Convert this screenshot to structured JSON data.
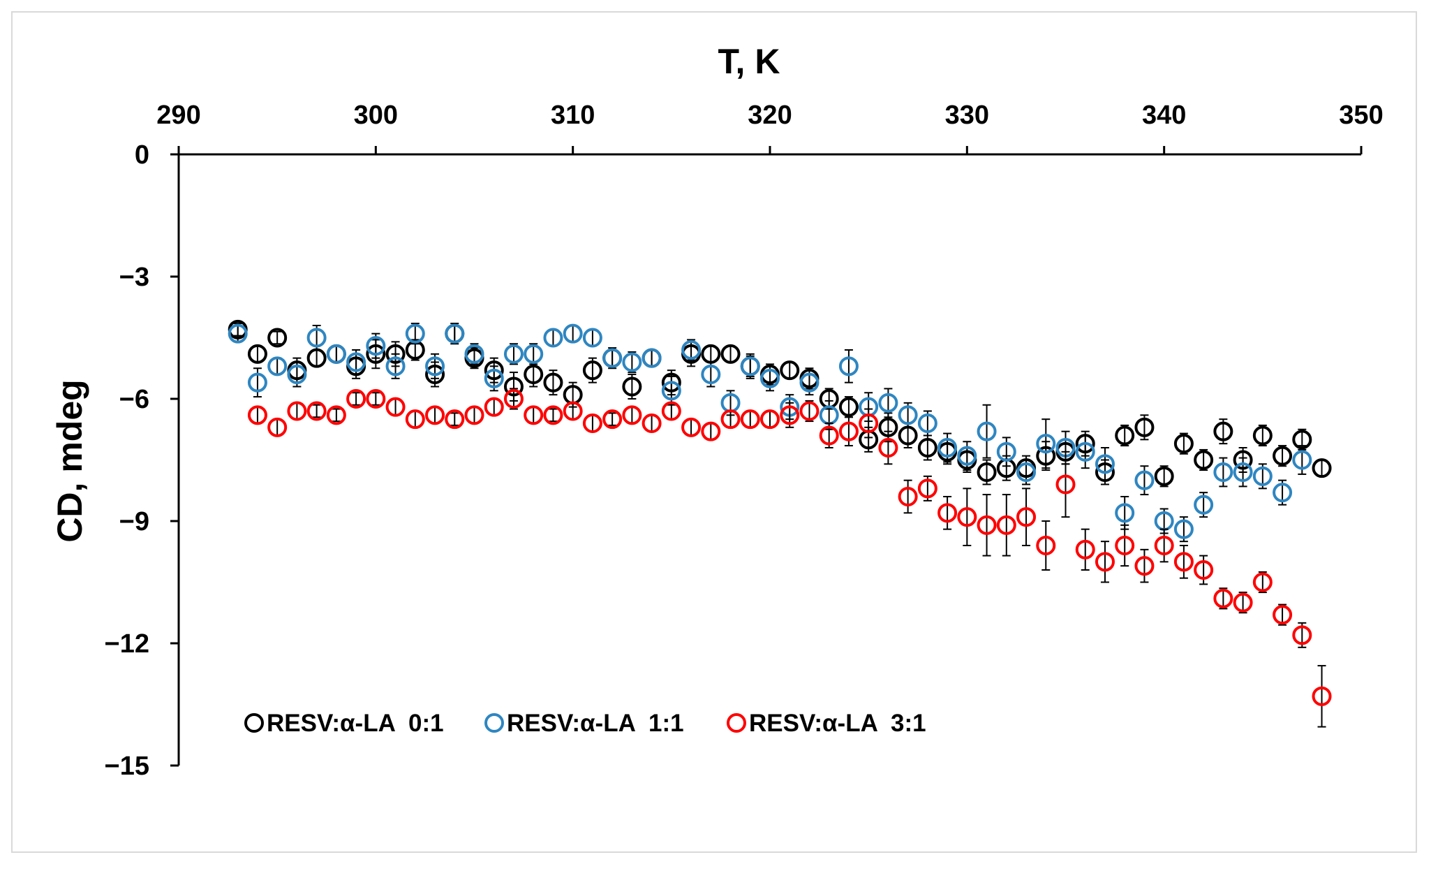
{
  "chart_data": {
    "type": "scatter",
    "title": "",
    "xlabel": "T, K",
    "ylabel": "CD, mdeg",
    "xlim": [
      290,
      350
    ],
    "ylim": [
      -15,
      0
    ],
    "x_ticks": [
      290,
      300,
      310,
      320,
      330,
      340,
      350
    ],
    "y_ticks": [
      0,
      -3,
      -6,
      -9,
      -12,
      -15
    ],
    "y_tick_labels": [
      "0",
      "−3",
      "−6",
      "−9",
      "−12",
      "−15"
    ],
    "x_axis_position": "top",
    "grid": false,
    "legend_position": "bottom-left",
    "error_bars": true,
    "series": [
      {
        "name": "RESV:α-LA  0:1",
        "color": "#000000",
        "x": [
          293,
          294,
          295,
          296,
          297,
          298,
          299,
          300,
          301,
          302,
          303,
          304,
          305,
          306,
          307,
          308,
          309,
          310,
          311,
          312,
          313,
          314,
          315,
          316,
          317,
          318,
          319,
          320,
          321,
          322,
          323,
          324,
          325,
          326,
          327,
          328,
          329,
          330,
          331,
          332,
          333,
          334,
          335,
          336,
          337,
          338,
          339,
          340,
          341,
          342,
          343,
          344,
          345,
          346,
          347,
          348
        ],
        "y": [
          -4.3,
          -4.9,
          -4.5,
          -5.3,
          -5.0,
          -4.9,
          -5.2,
          -4.9,
          -4.9,
          -4.8,
          -5.4,
          -4.4,
          -5.0,
          -5.3,
          -5.7,
          -5.4,
          -5.6,
          -5.9,
          -5.3,
          -5.0,
          -5.7,
          -5.0,
          -5.6,
          -4.9,
          -4.9,
          -4.9,
          -5.2,
          -5.4,
          -5.3,
          -5.5,
          -6.0,
          -6.2,
          -7.0,
          -6.7,
          -6.9,
          -7.2,
          -7.3,
          -7.5,
          -7.8,
          -7.7,
          -7.7,
          -7.4,
          -7.3,
          -7.1,
          -7.8,
          -6.9,
          -6.7,
          -7.9,
          -7.1,
          -7.5,
          -6.8,
          -7.5,
          -6.9,
          -7.4,
          -7.0,
          -7.7
        ],
        "err": [
          0.15,
          0.2,
          0.15,
          0.3,
          0.2,
          0.2,
          0.3,
          0.35,
          0.3,
          0.25,
          0.3,
          0.2,
          0.25,
          0.3,
          0.35,
          0.3,
          0.3,
          0.3,
          0.3,
          0.25,
          0.3,
          0.2,
          0.3,
          0.3,
          0.2,
          0.2,
          0.25,
          0.25,
          0.2,
          0.25,
          0.25,
          0.25,
          0.3,
          0.35,
          0.3,
          0.3,
          0.3,
          0.3,
          0.3,
          0.3,
          0.3,
          0.35,
          0.3,
          0.3,
          0.3,
          0.25,
          0.3,
          0.25,
          0.25,
          0.25,
          0.3,
          0.3,
          0.25,
          0.25,
          0.25,
          0.2
        ]
      },
      {
        "name": "RESV:α-LA  1:1",
        "color": "#2e86c1",
        "x": [
          293,
          294,
          295,
          296,
          297,
          298,
          299,
          300,
          301,
          302,
          303,
          304,
          305,
          306,
          307,
          308,
          309,
          310,
          311,
          312,
          313,
          314,
          315,
          316,
          317,
          318,
          319,
          320,
          321,
          322,
          323,
          324,
          325,
          326,
          327,
          328,
          329,
          330,
          331,
          332,
          333,
          334,
          335,
          336,
          337,
          338,
          339,
          340,
          341,
          342,
          343,
          344,
          345,
          346,
          347
        ],
        "y": [
          -4.4,
          -5.6,
          -5.2,
          -5.4,
          -4.5,
          -4.9,
          -5.1,
          -4.7,
          -5.2,
          -4.4,
          -5.2,
          -4.4,
          -4.9,
          -5.5,
          -4.9,
          -4.9,
          -4.5,
          -4.4,
          -4.5,
          -5.0,
          -5.1,
          -5.0,
          -5.8,
          -4.8,
          -5.4,
          -6.1,
          -5.2,
          -5.5,
          -6.2,
          -5.6,
          -6.4,
          -5.2,
          -6.2,
          -6.1,
          -6.4,
          -6.6,
          -7.2,
          -7.4,
          -6.8,
          -7.3,
          -7.8,
          -7.1,
          -7.2,
          -7.3,
          -7.6,
          -8.8,
          -8.0,
          -9.0,
          -9.2,
          -8.6,
          -7.8,
          -7.8,
          -7.9,
          -8.3,
          -7.5
        ],
        "err": [
          0.2,
          0.35,
          0.2,
          0.3,
          0.3,
          0.2,
          0.3,
          0.3,
          0.3,
          0.25,
          0.3,
          0.25,
          0.25,
          0.3,
          0.25,
          0.25,
          0.2,
          0.2,
          0.2,
          0.2,
          0.25,
          0.2,
          0.35,
          0.25,
          0.3,
          0.3,
          0.3,
          0.3,
          0.3,
          0.3,
          0.35,
          0.4,
          0.35,
          0.35,
          0.3,
          0.3,
          0.35,
          0.35,
          0.65,
          0.35,
          0.3,
          0.6,
          0.4,
          0.4,
          0.4,
          0.4,
          0.35,
          0.3,
          0.3,
          0.3,
          0.35,
          0.35,
          0.3,
          0.3,
          0.35
        ]
      },
      {
        "name": "RESV:α-LA  3:1",
        "color": "#ff0000",
        "x": [
          294,
          295,
          296,
          297,
          298,
          299,
          300,
          301,
          302,
          303,
          304,
          305,
          306,
          307,
          308,
          309,
          310,
          311,
          312,
          313,
          314,
          315,
          316,
          317,
          318,
          319,
          320,
          321,
          322,
          323,
          324,
          325,
          326,
          327,
          328,
          329,
          330,
          331,
          332,
          333,
          334,
          335,
          336,
          337,
          338,
          339,
          340,
          341,
          342,
          343,
          344,
          345,
          346,
          347,
          348
        ],
        "y": [
          -6.4,
          -6.7,
          -6.3,
          -6.3,
          -6.4,
          -6.0,
          -6.0,
          -6.2,
          -6.5,
          -6.4,
          -6.5,
          -6.4,
          -6.2,
          -6.0,
          -6.4,
          -6.4,
          -6.3,
          -6.6,
          -6.5,
          -6.4,
          -6.6,
          -6.3,
          -6.7,
          -6.8,
          -6.5,
          -6.5,
          -6.5,
          -6.4,
          -6.3,
          -6.9,
          -6.8,
          -6.6,
          -7.2,
          -8.4,
          -8.2,
          -8.8,
          -8.9,
          -9.1,
          -9.1,
          -8.9,
          -9.6,
          -8.1,
          -9.7,
          -10.0,
          -9.6,
          -10.1,
          -9.6,
          -10.0,
          -10.2,
          -10.9,
          -11.0,
          -10.5,
          -11.3,
          -11.8,
          -13.3
        ],
        "err": [
          0.2,
          0.2,
          0.2,
          0.15,
          0.15,
          0.15,
          0.15,
          0.2,
          0.2,
          0.2,
          0.15,
          0.2,
          0.2,
          0.25,
          0.2,
          0.15,
          0.2,
          0.2,
          0.15,
          0.2,
          0.2,
          0.2,
          0.2,
          0.2,
          0.2,
          0.2,
          0.2,
          0.3,
          0.25,
          0.3,
          0.35,
          0.35,
          0.4,
          0.4,
          0.3,
          0.4,
          0.7,
          0.75,
          0.75,
          0.7,
          0.6,
          0.8,
          0.5,
          0.5,
          0.5,
          0.4,
          0.4,
          0.4,
          0.35,
          0.25,
          0.25,
          0.25,
          0.25,
          0.3,
          0.75
        ]
      }
    ]
  }
}
